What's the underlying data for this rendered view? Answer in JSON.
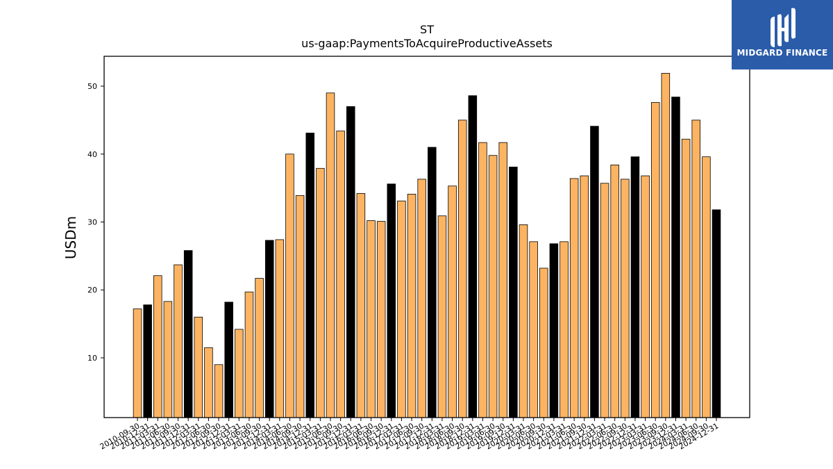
{
  "logo": {
    "text": "MIDGARD FINANCE",
    "icon": "midgard-logo-icon",
    "background": "#2a5caa"
  },
  "chart_data": {
    "type": "bar",
    "title": "ST",
    "subtitle": "us-gaap:PaymentsToAcquireProductiveAssets",
    "ylabel": "USDm",
    "xlabel": "",
    "ylim": [
      1.2,
      54.4
    ],
    "yticks": [
      10,
      20,
      30,
      40,
      50
    ],
    "grid": false,
    "colors": {
      "quarter": "#fdb462",
      "year_end": "#000000",
      "edge": "#000000"
    },
    "categories": [
      "2010-09-30",
      "2010-12-31",
      "2011-03-31",
      "2011-06-30",
      "2011-09-30",
      "2011-12-31",
      "2012-03-31",
      "2012-06-30",
      "2012-09-30",
      "2012-12-31",
      "2013-03-31",
      "2013-06-30",
      "2013-09-30",
      "2013-12-31",
      "2014-03-31",
      "2014-06-30",
      "2014-09-30",
      "2014-12-31",
      "2015-03-31",
      "2015-06-30",
      "2015-09-30",
      "2015-12-31",
      "2016-03-31",
      "2016-06-30",
      "2016-09-30",
      "2016-12-31",
      "2017-03-31",
      "2017-06-30",
      "2017-09-30",
      "2017-12-31",
      "2018-03-31",
      "2018-06-30",
      "2018-09-30",
      "2018-12-31",
      "2019-03-31",
      "2019-06-30",
      "2019-09-30",
      "2019-12-31",
      "2020-03-31",
      "2020-06-30",
      "2020-09-30",
      "2020-12-31",
      "2021-03-31",
      "2021-06-30",
      "2021-09-30",
      "2021-12-31",
      "2022-03-31",
      "2022-06-30",
      "2022-09-30",
      "2022-12-31",
      "2023-03-31",
      "2023-06-30",
      "2023-09-30",
      "2023-12-31",
      "2024-03-31",
      "2024-06-30",
      "2024-09-30",
      "2024-12-31"
    ],
    "values": [
      17.2,
      17.8,
      22.1,
      18.3,
      23.7,
      25.8,
      16.0,
      11.5,
      9.0,
      18.2,
      14.2,
      19.7,
      21.7,
      27.3,
      27.4,
      40.0,
      33.9,
      43.1,
      37.9,
      49.0,
      43.4,
      47.0,
      34.2,
      30.2,
      30.1,
      35.6,
      33.1,
      34.1,
      36.3,
      41.0,
      30.9,
      35.3,
      45.0,
      48.6,
      41.7,
      39.8,
      41.7,
      38.1,
      29.6,
      27.1,
      23.2,
      26.8,
      27.1,
      36.4,
      36.8,
      44.1,
      35.7,
      38.4,
      36.3,
      39.6,
      36.8,
      47.6,
      51.9,
      48.4,
      42.2,
      45.0,
      39.6,
      31.8
    ],
    "year_end": [
      false,
      true,
      false,
      false,
      false,
      true,
      false,
      false,
      false,
      true,
      false,
      false,
      false,
      true,
      false,
      false,
      false,
      true,
      false,
      false,
      false,
      true,
      false,
      false,
      false,
      true,
      false,
      false,
      false,
      true,
      false,
      false,
      false,
      true,
      false,
      false,
      false,
      true,
      false,
      false,
      false,
      true,
      false,
      false,
      false,
      true,
      false,
      false,
      false,
      true,
      false,
      false,
      false,
      true,
      false,
      false,
      false,
      true
    ]
  }
}
